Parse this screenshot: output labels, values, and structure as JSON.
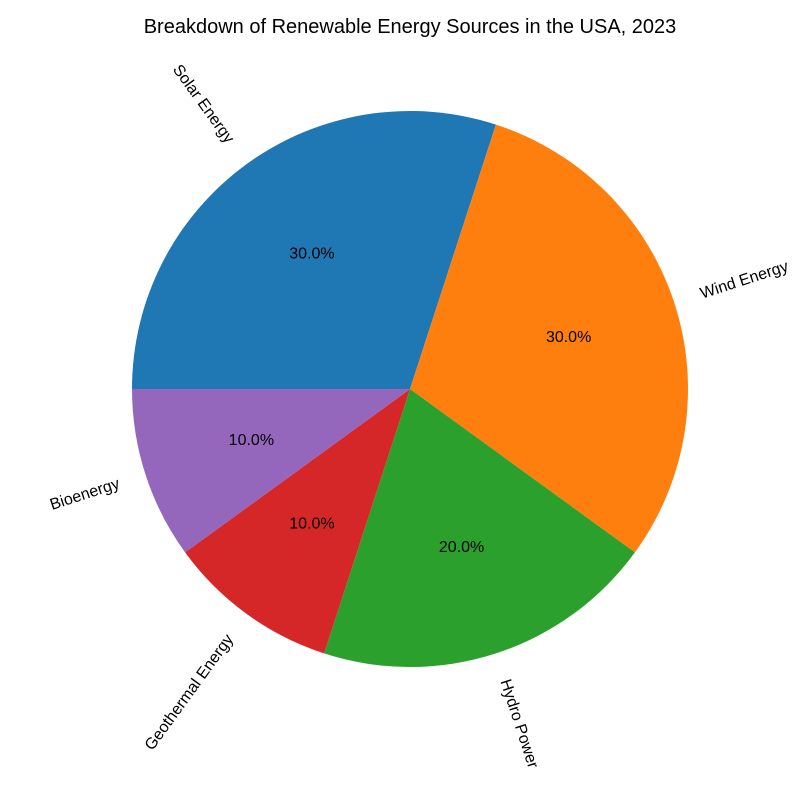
{
  "chart_data": {
    "type": "pie",
    "title": "Breakdown of Renewable Energy Sources in the USA, 2023",
    "labels": [
      "Solar Energy",
      "Wind Energy",
      "Hydro Power",
      "Geothermal Energy",
      "Bioenergy"
    ],
    "values": [
      30,
      30,
      20,
      10,
      10
    ],
    "percent_labels": [
      "30.0%",
      "30.0%",
      "20.0%",
      "10.0%",
      "10.0%"
    ],
    "colors": [
      "#1f77b4",
      "#ff7f0e",
      "#2ca02c",
      "#d62728",
      "#9467bd"
    ],
    "start_angle_deg": 180,
    "direction": "clockwise"
  }
}
